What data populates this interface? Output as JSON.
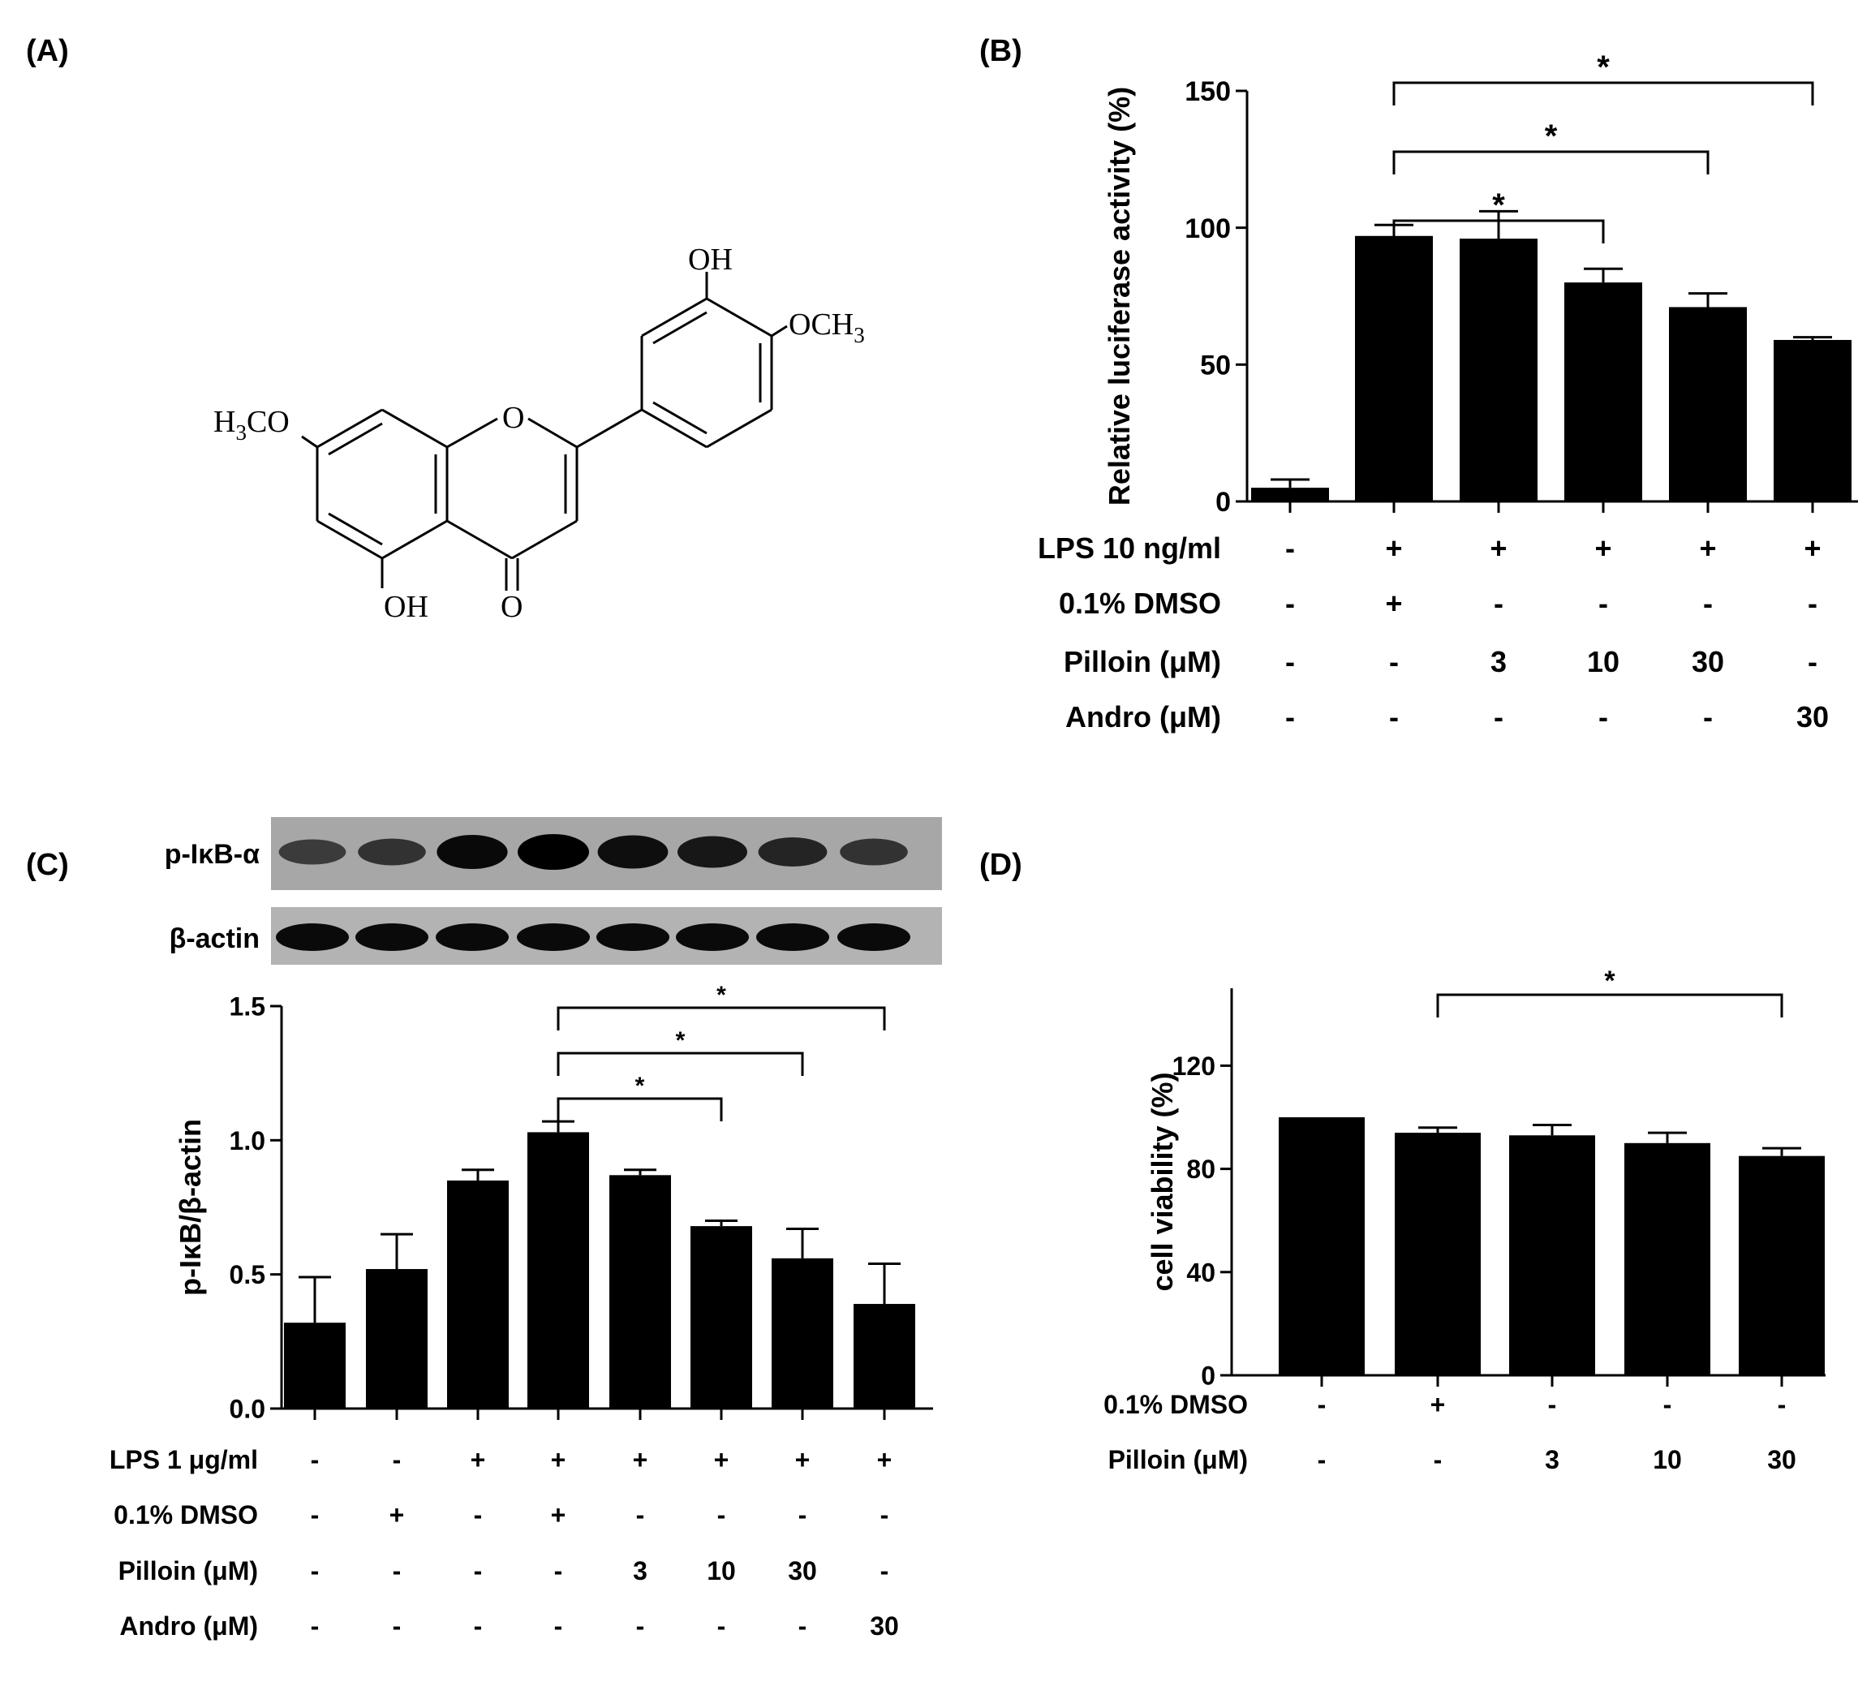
{
  "panels": {
    "A": {
      "label": "(A)",
      "atoms": {
        "oh_top": "OH",
        "och3": "OCH",
        "sub3": "3",
        "h3co_h": "H",
        "h3co_3": "3",
        "h3co_co": "CO",
        "o_ring": "O",
        "oh_bottom": "OH",
        "o_carbonyl": "O"
      }
    },
    "B": {
      "label": "(B)"
    },
    "C": {
      "label": "(C)",
      "blot_labels": [
        "p-IκB-α",
        "β-actin"
      ]
    },
    "D": {
      "label": "(D)"
    }
  },
  "chart_data": [
    {
      "panel": "B",
      "type": "bar",
      "ylabel": "Relative luciferase activity (%)",
      "ylim": [
        0,
        150
      ],
      "yticks": [
        "0",
        "50",
        "100",
        "150"
      ],
      "values": [
        5,
        97,
        96,
        80,
        71,
        59
      ],
      "errors": [
        3,
        4,
        10,
        5,
        5,
        1
      ],
      "treatment_rows": [
        {
          "label": "LPS 10 ng/ml",
          "cells": [
            "-",
            "+",
            "+",
            "+",
            "+",
            "+"
          ]
        },
        {
          "label": "0.1% DMSO",
          "cells": [
            "-",
            "+",
            "-",
            "-",
            "-",
            "-"
          ]
        },
        {
          "label": "Pilloin (μM)",
          "cells": [
            "-",
            "-",
            "3",
            "10",
            "30",
            "-"
          ]
        },
        {
          "label": "Andro (μM)",
          "cells": [
            "-",
            "-",
            "-",
            "-",
            "-",
            "30"
          ]
        }
      ],
      "significance": [
        {
          "from": 1,
          "to": 3,
          "label": "*"
        },
        {
          "from": 1,
          "to": 4,
          "label": "*"
        },
        {
          "from": 1,
          "to": 5,
          "label": "*"
        }
      ]
    },
    {
      "panel": "C",
      "type": "bar",
      "ylabel": "p-IκB/β-actin",
      "ylim": [
        0,
        1.5
      ],
      "yticks": [
        "0.0",
        "0.5",
        "1.0",
        "1.5"
      ],
      "values": [
        0.32,
        0.52,
        0.85,
        1.03,
        0.87,
        0.68,
        0.56,
        0.39
      ],
      "errors": [
        0.17,
        0.13,
        0.04,
        0.04,
        0.02,
        0.02,
        0.11,
        0.15
      ],
      "treatment_rows": [
        {
          "label": "LPS 1 μg/ml",
          "cells": [
            "-",
            "-",
            "+",
            "+",
            "+",
            "+",
            "+",
            "+"
          ]
        },
        {
          "label": "0.1% DMSO",
          "cells": [
            "-",
            "+",
            "-",
            "+",
            "-",
            "-",
            "-",
            "-"
          ]
        },
        {
          "label": "Pilloin (μM)",
          "cells": [
            "-",
            "-",
            "-",
            "-",
            "3",
            "10",
            "30",
            "-"
          ]
        },
        {
          "label": "Andro (μM)",
          "cells": [
            "-",
            "-",
            "-",
            "-",
            "-",
            "-",
            "-",
            "30"
          ]
        }
      ],
      "significance": [
        {
          "from": 3,
          "to": 5,
          "label": "*"
        },
        {
          "from": 3,
          "to": 6,
          "label": "*"
        },
        {
          "from": 3,
          "to": 7,
          "label": "*"
        }
      ],
      "blot_intensity": {
        "p-IκB-α": [
          0.35,
          0.45,
          0.9,
          1.0,
          0.85,
          0.75,
          0.6,
          0.45
        ],
        "β-actin": [
          1,
          1,
          1,
          1,
          1,
          1,
          1,
          1
        ]
      }
    },
    {
      "panel": "D",
      "type": "bar",
      "ylabel": "cell viability (%)",
      "ylim": [
        0,
        150
      ],
      "yticks": [
        "0",
        "40",
        "80",
        "120"
      ],
      "values": [
        100,
        94,
        93,
        90,
        85
      ],
      "errors": [
        0,
        2,
        4,
        4,
        3
      ],
      "treatment_rows": [
        {
          "label": "0.1% DMSO",
          "cells": [
            "-",
            "+",
            "-",
            "-",
            "-"
          ]
        },
        {
          "label": "Pilloin (μM)",
          "cells": [
            "-",
            "-",
            "3",
            "10",
            "30"
          ]
        }
      ],
      "significance": [
        {
          "from": 1,
          "to": 4,
          "label": "*"
        }
      ]
    }
  ]
}
